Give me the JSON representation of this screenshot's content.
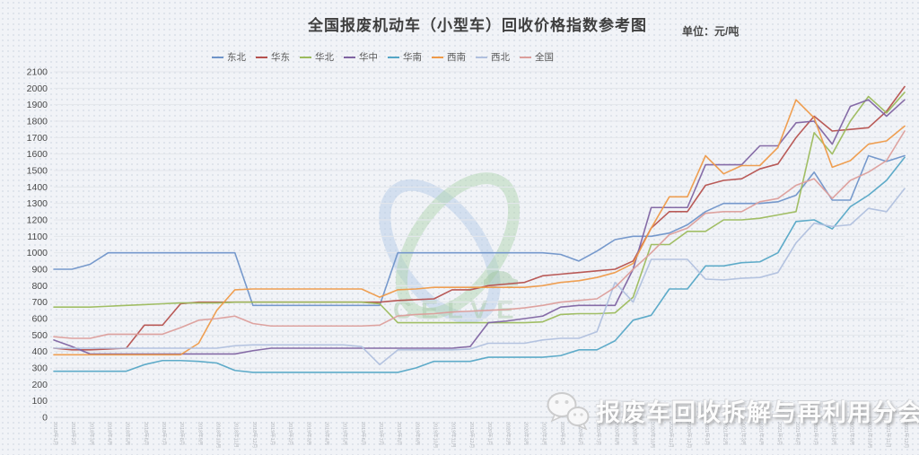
{
  "title": "全国报废机动车（小型车）回收价格指数参考图",
  "unit_label": "单位：元/吨",
  "watermark": {
    "text": "CELVE"
  },
  "footer": {
    "text": "报废车回收拆解与再利用分会",
    "icon": "wechat-icon"
  },
  "chart_data": {
    "type": "line",
    "title": "全国报废机动车（小型车）回收价格指数参考图",
    "unit": "元/吨",
    "ylim": [
      0,
      2100
    ],
    "y_tick_step": 100,
    "grid": "horizontal",
    "legend_position": "top-left",
    "x_labels": [
      "2018年1月",
      "2018年2月",
      "2018年3月",
      "2018年4月",
      "2018年5月",
      "2018年6月",
      "2018年7月",
      "2018年8月",
      "2018年9月",
      "2018年10月",
      "2018年11月",
      "2018年12月",
      "2019年1月",
      "2019年2月",
      "2019年3月",
      "2019年4月",
      "2019年5月",
      "2019年6月",
      "2019年7月",
      "2019年8月",
      "2019年9月",
      "2019年10月",
      "2019年11月",
      "2019年12月",
      "2020年1月",
      "2020年2月",
      "2020年3月",
      "2020年4月",
      "2020年5月",
      "2020年6月",
      "2020年7月",
      "2020年8月",
      "2020年9月",
      "2020年10月",
      "2020年11月",
      "2020年12月",
      "2021年1月",
      "2021年2月",
      "2021年3月",
      "2021年4月",
      "2021年5月",
      "2021年6月",
      "2021年7月",
      "2021年8月",
      "2021年9月",
      "2021年10月",
      "2021年11月",
      "2021年12月"
    ],
    "series": [
      {
        "name": "东北",
        "color": "#6f94c9",
        "values": [
          900,
          900,
          930,
          1000,
          1000,
          1000,
          1000,
          1000,
          1000,
          1000,
          1000,
          680,
          680,
          680,
          680,
          680,
          680,
          680,
          680,
          1000,
          1000,
          1000,
          1000,
          1000,
          1000,
          1000,
          1000,
          1000,
          990,
          950,
          1010,
          1080,
          1100,
          1100,
          1120,
          1170,
          1250,
          1300,
          1300,
          1300,
          1310,
          1350,
          1490,
          1320,
          1320,
          1590,
          1555,
          1590
        ]
      },
      {
        "name": "华东",
        "color": "#b5514e",
        "values": [
          420,
          410,
          410,
          415,
          420,
          560,
          560,
          690,
          700,
          700,
          700,
          700,
          700,
          700,
          700,
          700,
          700,
          700,
          700,
          710,
          715,
          720,
          775,
          775,
          800,
          810,
          820,
          860,
          870,
          880,
          890,
          900,
          950,
          1150,
          1250,
          1250,
          1410,
          1440,
          1450,
          1510,
          1540,
          1700,
          1830,
          1740,
          1750,
          1760,
          1860,
          2010
        ]
      },
      {
        "name": "华北",
        "color": "#9cbb5d",
        "values": [
          670,
          670,
          670,
          675,
          680,
          685,
          690,
          695,
          695,
          695,
          700,
          700,
          700,
          700,
          700,
          700,
          700,
          700,
          690,
          575,
          575,
          575,
          575,
          575,
          575,
          575,
          575,
          580,
          625,
          630,
          630,
          635,
          730,
          1050,
          1050,
          1130,
          1130,
          1200,
          1200,
          1210,
          1230,
          1250,
          1730,
          1600,
          1800,
          1950,
          1850,
          1975
        ]
      },
      {
        "name": "华中",
        "color": "#8064a2",
        "values": [
          470,
          430,
          385,
          385,
          385,
          385,
          385,
          385,
          385,
          385,
          385,
          405,
          420,
          420,
          420,
          420,
          420,
          420,
          420,
          420,
          420,
          420,
          420,
          430,
          575,
          585,
          600,
          615,
          670,
          680,
          680,
          680,
          900,
          1275,
          1275,
          1275,
          1535,
          1535,
          1535,
          1650,
          1650,
          1790,
          1800,
          1660,
          1890,
          1930,
          1830,
          1930
        ]
      },
      {
        "name": "华南",
        "color": "#55a6c6",
        "values": [
          280,
          280,
          280,
          280,
          280,
          320,
          345,
          345,
          340,
          330,
          285,
          273,
          273,
          273,
          273,
          273,
          273,
          273,
          273,
          273,
          300,
          340,
          340,
          340,
          365,
          365,
          365,
          365,
          375,
          410,
          410,
          465,
          590,
          620,
          780,
          780,
          920,
          920,
          940,
          945,
          1000,
          1190,
          1200,
          1145,
          1280,
          1350,
          1440,
          1580
        ]
      },
      {
        "name": "西南",
        "color": "#ee9a49",
        "values": [
          380,
          380,
          380,
          380,
          380,
          380,
          380,
          380,
          450,
          650,
          775,
          780,
          780,
          780,
          780,
          780,
          780,
          780,
          730,
          775,
          780,
          790,
          790,
          790,
          790,
          790,
          790,
          800,
          820,
          830,
          850,
          880,
          935,
          1150,
          1340,
          1340,
          1590,
          1480,
          1530,
          1530,
          1640,
          1930,
          1820,
          1520,
          1560,
          1660,
          1680,
          1770
        ]
      },
      {
        "name": "西北",
        "color": "#b0c0de",
        "values": [
          420,
          420,
          420,
          420,
          420,
          420,
          420,
          420,
          420,
          420,
          435,
          440,
          440,
          440,
          440,
          440,
          440,
          430,
          320,
          410,
          410,
          410,
          410,
          415,
          450,
          450,
          450,
          470,
          480,
          480,
          520,
          820,
          700,
          960,
          960,
          960,
          840,
          835,
          845,
          850,
          880,
          1060,
          1180,
          1160,
          1170,
          1270,
          1250,
          1390
        ]
      },
      {
        "name": "全国",
        "color": "#dc9e9b",
        "values": [
          490,
          480,
          480,
          505,
          505,
          505,
          505,
          545,
          590,
          600,
          615,
          570,
          555,
          555,
          555,
          555,
          555,
          555,
          560,
          616,
          625,
          630,
          640,
          645,
          650,
          655,
          665,
          680,
          700,
          710,
          720,
          790,
          900,
          1000,
          1110,
          1150,
          1240,
          1250,
          1250,
          1310,
          1330,
          1410,
          1450,
          1330,
          1440,
          1490,
          1560,
          1740
        ]
      }
    ]
  }
}
